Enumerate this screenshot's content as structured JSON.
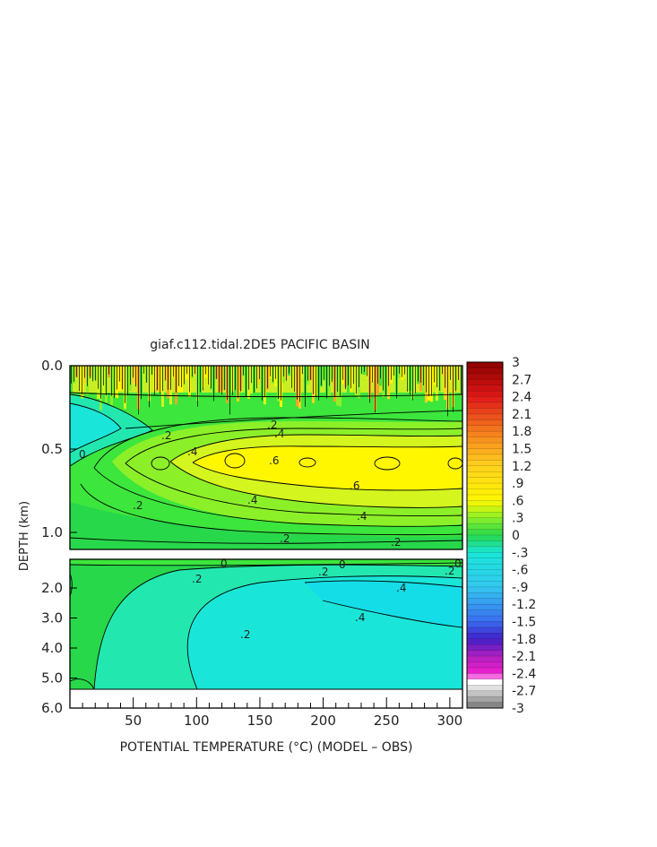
{
  "chart_data": {
    "type": "heatmap",
    "title": "giaf.c112.tidal.2DE5 PACIFIC BASIN",
    "xlabel": "POTENTIAL TEMPERATURE (°C) (MODEL – OBS)",
    "ylabel": "DEPTH (km)",
    "x_ticks": [
      "50",
      "100",
      "150",
      "200",
      "250",
      "300"
    ],
    "x_tick_values": [
      50,
      100,
      150,
      200,
      250,
      300
    ],
    "xlim": [
      0,
      310
    ],
    "y_ticks_upper": [
      "0.0",
      "0.5",
      "1.0"
    ],
    "y_tick_values_upper": [
      0.0,
      0.5,
      1.0
    ],
    "ylim_upper": [
      0.0,
      1.0
    ],
    "y_ticks_lower": [
      "2.0",
      "3.0",
      "4.0",
      "5.0",
      "6.0"
    ],
    "y_tick_values_lower": [
      2.0,
      3.0,
      4.0,
      5.0,
      6.0
    ],
    "ylim_lower": [
      1.0,
      6.0
    ],
    "colorbar": {
      "range": [
        -3,
        3
      ],
      "labels": [
        "3",
        "2.7",
        "2.4",
        "2.1",
        "1.8",
        "1.5",
        "1.2",
        ".9",
        ".6",
        ".3",
        "0",
        "-.3",
        "-.6",
        "-.9",
        "-1.2",
        "-1.5",
        "-1.8",
        "-2.1",
        "-2.4",
        "-2.7",
        "-3"
      ],
      "label_values": [
        3,
        2.7,
        2.4,
        2.1,
        1.8,
        1.5,
        1.2,
        0.9,
        0.6,
        0.3,
        0,
        -0.3,
        -0.6,
        -0.9,
        -1.2,
        -1.5,
        -1.8,
        -2.1,
        -2.4,
        -2.7,
        -3
      ]
    },
    "contour_labels_upper": [
      ".2",
      ".2",
      ".4",
      ".4",
      ".6",
      ".6",
      ".4",
      ".2",
      ".4",
      ".2",
      ".2",
      "0"
    ],
    "contour_labels_lower": [
      "0",
      "0",
      ".2",
      ".2",
      ".4",
      ".2",
      ".4",
      ".2",
      "0"
    ],
    "colors": {
      "cyan": "#19e6d8",
      "teal": "#22e8b0",
      "green_dark": "#27d84a",
      "green": "#3ce63c",
      "green_light": "#8cf028",
      "yellow_green": "#d4f51e",
      "yellow": "#fff700"
    }
  }
}
